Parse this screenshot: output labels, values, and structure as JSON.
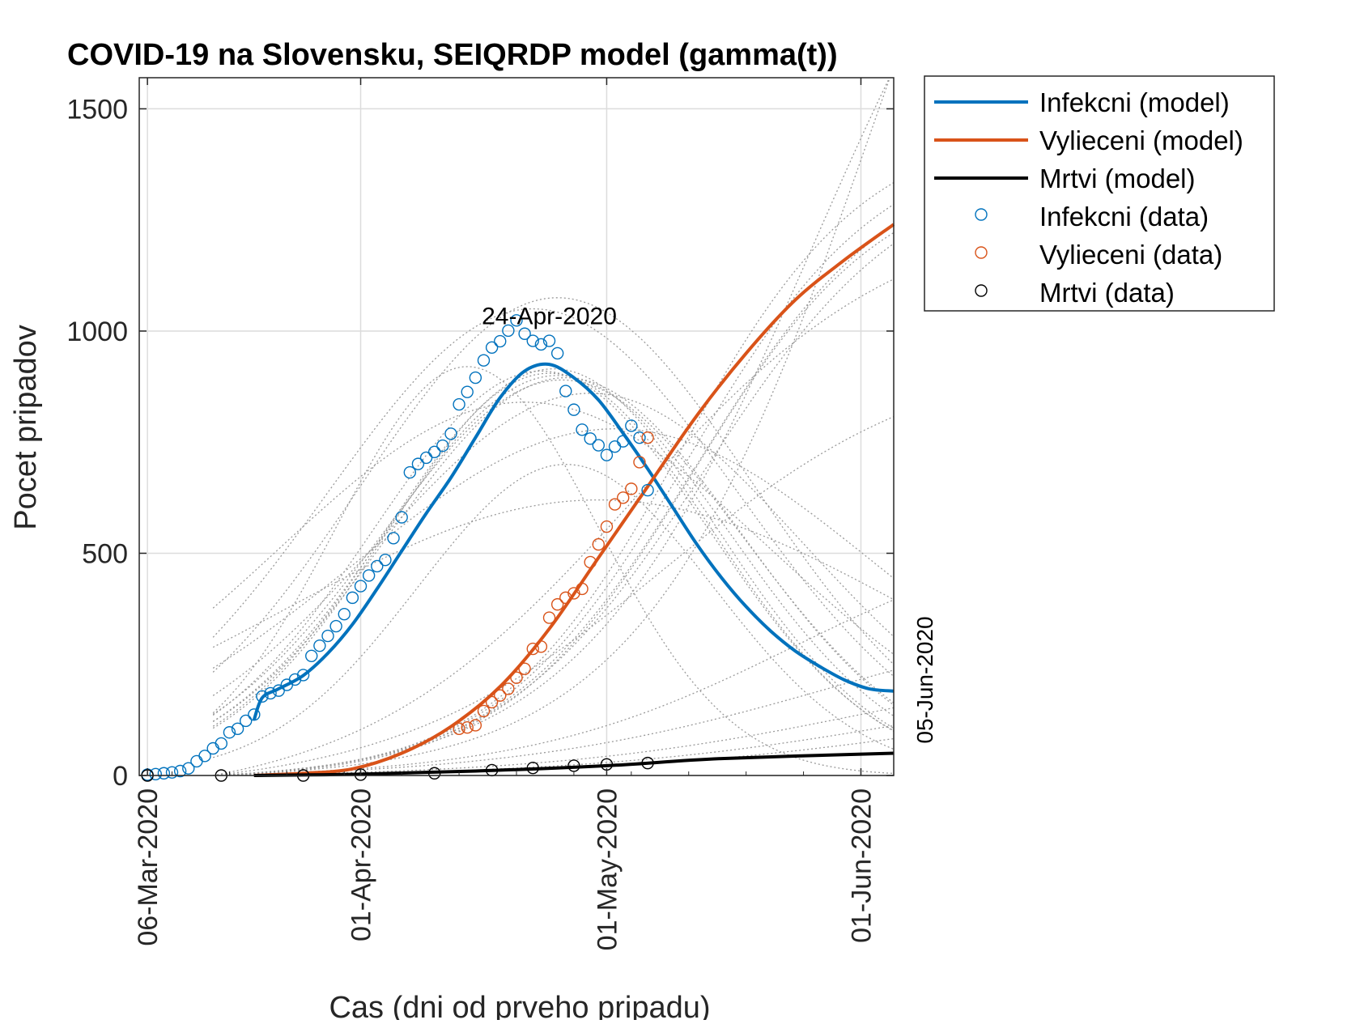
{
  "chart_data": {
    "type": "line",
    "title": "COVID-19 na Slovensku, SEIQRDP model (gamma(t))",
    "xlabel": "Cas (dni od prveho pripadu)",
    "ylabel": "Pocet pripadov",
    "x_start_date": "06-Mar-2020",
    "xlim": [
      "05-Mar-2020",
      "05-Jun-2020"
    ],
    "ylim": [
      0,
      1570
    ],
    "x_ticks": [
      "06-Mar-2020",
      "01-Apr-2020",
      "01-May-2020",
      "01-Jun-2020"
    ],
    "y_ticks": [
      0,
      500,
      1000,
      1500
    ],
    "grid": true,
    "legend_position": "outside-top-right",
    "annotations": [
      {
        "text": "24-Apr-2020",
        "date": "24-Apr-2020",
        "value": 1015
      },
      {
        "text": "05-Jun-2020",
        "date": "05-Jun-2020",
        "value": 200,
        "rotated": true
      }
    ],
    "colors": {
      "infectious": "#0072BD",
      "recovered": "#D95319",
      "dead": "#000000",
      "ensemble": "#9a9a9a",
      "grid": "#dcdcdc"
    },
    "series": [
      {
        "name": "Infekcni (model)",
        "kind": "line",
        "color": "#0072BD",
        "x": [
          "19-Mar-2020",
          "20-Mar-2020",
          "22-Mar-2020",
          "25-Mar-2020",
          "28-Mar-2020",
          "31-Mar-2020",
          "03-Apr-2020",
          "06-Apr-2020",
          "09-Apr-2020",
          "12-Apr-2020",
          "15-Apr-2020",
          "18-Apr-2020",
          "21-Apr-2020",
          "24-Apr-2020",
          "27-Apr-2020",
          "30-Apr-2020",
          "03-May-2020",
          "06-May-2020",
          "09-May-2020",
          "12-May-2020",
          "15-May-2020",
          "18-May-2020",
          "21-May-2020",
          "24-May-2020",
          "27-May-2020",
          "30-May-2020",
          "02-Jun-2020",
          "05-Jun-2020"
        ],
        "values": [
          125,
          175,
          195,
          225,
          275,
          340,
          420,
          505,
          590,
          670,
          760,
          850,
          910,
          925,
          895,
          845,
          770,
          690,
          605,
          520,
          445,
          380,
          325,
          280,
          245,
          215,
          195,
          190
        ]
      },
      {
        "name": "Vylieceni (model)",
        "kind": "line",
        "color": "#D95319",
        "x": [
          "19-Mar-2020",
          "25-Mar-2020",
          "31-Mar-2020",
          "06-Apr-2020",
          "12-Apr-2020",
          "18-Apr-2020",
          "24-Apr-2020",
          "30-Apr-2020",
          "06-May-2020",
          "12-May-2020",
          "18-May-2020",
          "24-May-2020",
          "30-May-2020",
          "05-Jun-2020"
        ],
        "values": [
          0,
          5,
          15,
          50,
          110,
          200,
          330,
          490,
          650,
          810,
          950,
          1070,
          1160,
          1240
        ]
      },
      {
        "name": "Mrtvi (model)",
        "kind": "line",
        "color": "#000000",
        "x": [
          "19-Mar-2020",
          "01-Apr-2020",
          "15-Apr-2020",
          "01-May-2020",
          "15-May-2020",
          "05-Jun-2020"
        ],
        "values": [
          0,
          3,
          10,
          22,
          38,
          50
        ]
      },
      {
        "name": "Infekcni (data)",
        "kind": "markers",
        "color": "#0072BD",
        "x": [
          "06-Mar-2020",
          "07-Mar-2020",
          "08-Mar-2020",
          "09-Mar-2020",
          "10-Mar-2020",
          "11-Mar-2020",
          "12-Mar-2020",
          "13-Mar-2020",
          "14-Mar-2020",
          "15-Mar-2020",
          "16-Mar-2020",
          "17-Mar-2020",
          "18-Mar-2020",
          "19-Mar-2020",
          "20-Mar-2020",
          "21-Mar-2020",
          "22-Mar-2020",
          "23-Mar-2020",
          "24-Mar-2020",
          "25-Mar-2020",
          "26-Mar-2020",
          "27-Mar-2020",
          "28-Mar-2020",
          "29-Mar-2020",
          "30-Mar-2020",
          "31-Mar-2020",
          "01-Apr-2020",
          "02-Apr-2020",
          "03-Apr-2020",
          "04-Apr-2020",
          "05-Apr-2020",
          "06-Apr-2020",
          "07-Apr-2020",
          "08-Apr-2020",
          "09-Apr-2020",
          "10-Apr-2020",
          "11-Apr-2020",
          "12-Apr-2020",
          "13-Apr-2020",
          "14-Apr-2020",
          "15-Apr-2020",
          "16-Apr-2020",
          "17-Apr-2020",
          "18-Apr-2020",
          "19-Apr-2020",
          "20-Apr-2020",
          "21-Apr-2020",
          "22-Apr-2020",
          "23-Apr-2020",
          "24-Apr-2020",
          "25-Apr-2020",
          "26-Apr-2020",
          "27-Apr-2020",
          "28-Apr-2020",
          "29-Apr-2020",
          "30-Apr-2020",
          "01-May-2020",
          "02-May-2020",
          "03-May-2020",
          "04-May-2020",
          "05-May-2020",
          "06-May-2020"
        ],
        "values": [
          2,
          3,
          5,
          7,
          10,
          16,
          32,
          44,
          61,
          72,
          97,
          105,
          123,
          137,
          178,
          185,
          191,
          204,
          216,
          226,
          269,
          292,
          314,
          336,
          363,
          400,
          426,
          450,
          471,
          485,
          534,
          581,
          682,
          701,
          715,
          728,
          742,
          769,
          835,
          863,
          895,
          934,
          963,
          977,
          1001,
          1024,
          994,
          978,
          970,
          978,
          950,
          865,
          823,
          778,
          758,
          743,
          721,
          740,
          752,
          787,
          760,
          642
        ]
      },
      {
        "name": "Vylieceni (data)",
        "kind": "markers",
        "color": "#D95319",
        "x": [
          "13-Apr-2020",
          "14-Apr-2020",
          "15-Apr-2020",
          "16-Apr-2020",
          "17-Apr-2020",
          "18-Apr-2020",
          "19-Apr-2020",
          "20-Apr-2020",
          "21-Apr-2020",
          "22-Apr-2020",
          "23-Apr-2020",
          "24-Apr-2020",
          "25-Apr-2020",
          "26-Apr-2020",
          "27-Apr-2020",
          "28-Apr-2020",
          "29-Apr-2020",
          "30-Apr-2020",
          "01-May-2020",
          "02-May-2020",
          "03-May-2020",
          "04-May-2020",
          "05-May-2020",
          "06-May-2020"
        ],
        "values": [
          105,
          108,
          113,
          145,
          165,
          180,
          195,
          220,
          240,
          285,
          290,
          355,
          385,
          400,
          410,
          420,
          480,
          520,
          560,
          610,
          625,
          645,
          705,
          760
        ]
      },
      {
        "name": "Mrtvi (data)",
        "kind": "markers",
        "color": "#000000",
        "x": [
          "06-Mar-2020",
          "15-Mar-2020",
          "25-Mar-2020",
          "01-Apr-2020",
          "10-Apr-2020",
          "17-Apr-2020",
          "22-Apr-2020",
          "27-Apr-2020",
          "01-May-2020",
          "06-May-2020"
        ],
        "values": [
          0,
          0,
          0,
          2,
          5,
          12,
          17,
          22,
          25,
          28
        ]
      }
    ]
  }
}
